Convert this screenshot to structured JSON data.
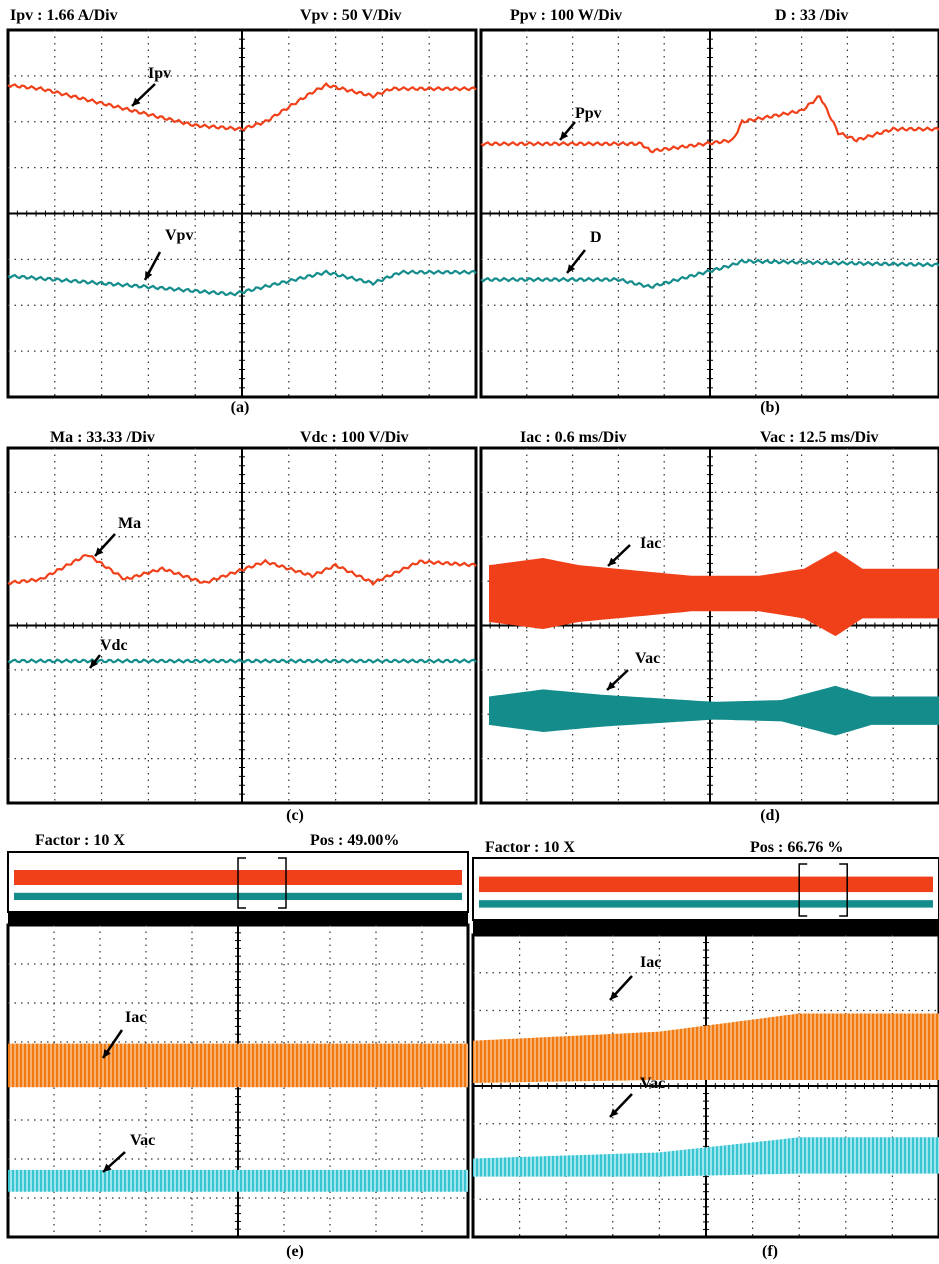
{
  "panels": [
    {
      "caption": "(a)",
      "header_left": "Ipv : 1.66 A/Div",
      "header_right": "Vpv : 50 V/Div",
      "labels": [
        "Ipv",
        "Vpv"
      ]
    },
    {
      "caption": "(b)",
      "header_left": "Ppv : 100 W/Div",
      "header_right": "D : 33 /Div",
      "labels": [
        "Ppv",
        "D"
      ]
    },
    {
      "caption": "(c)",
      "header_left": "Ma : 33.33 /Div",
      "header_right": "Vdc : 100 V/Div",
      "labels": [
        "Ma",
        "Vdc"
      ]
    },
    {
      "caption": "(d)",
      "header_left": "Iac : 0.6 ms/Div",
      "header_right": "Vac : 12.5 ms/Div",
      "labels": [
        "Iac",
        "Vac"
      ]
    },
    {
      "caption": "(e)",
      "header_left": "Factor : 10 X",
      "header_right": "Pos : 49.00%",
      "labels": [
        "Iac",
        "Vac"
      ]
    },
    {
      "caption": "(f)",
      "header_left": "Factor : 10 X",
      "header_right": "Pos : 66.76 %",
      "labels": [
        "Iac",
        "Vac"
      ]
    }
  ]
}
